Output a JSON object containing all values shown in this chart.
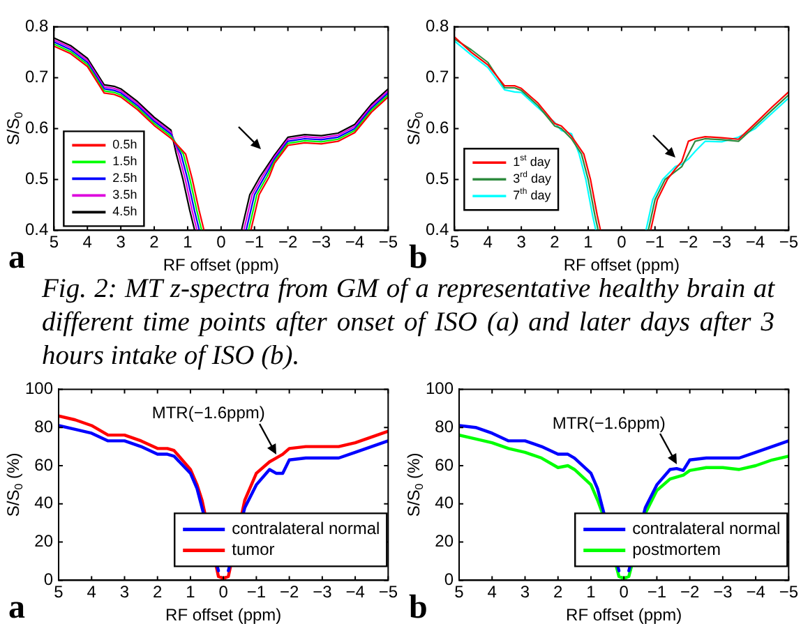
{
  "chart_data": [
    {
      "type": "line",
      "xlabel": "RF offset (ppm)",
      "ylabel": "S/S$_{0}$",
      "xlim": [
        5,
        -5
      ],
      "xticks": [
        5,
        4,
        3,
        2,
        1,
        0,
        -1,
        -2,
        -3,
        -4,
        -5
      ],
      "ylim": [
        0.4,
        0.8
      ],
      "yticks": [
        0.4,
        0.5,
        0.6,
        0.7,
        0.8
      ],
      "legend": "bottom left",
      "grid": false,
      "marker": "none",
      "line_style": "solid",
      "annotations": [
        "a"
      ],
      "series": [
        {
          "name": "0.5h",
          "color": "#ff0000",
          "x": [
            5,
            4.5,
            4,
            3.5,
            3.2,
            3,
            2.5,
            2,
            1.8,
            1.5,
            1.06,
            0.86,
            0.66,
            0.51,
            0,
            -0.89,
            -1.14,
            -1.44,
            -1.6,
            -2,
            -2.5,
            -3,
            -3.5,
            -4,
            -4.5,
            -5
          ],
          "values": [
            0.762,
            0.747,
            0.722,
            0.67,
            0.667,
            0.662,
            0.637,
            0.606,
            0.596,
            0.581,
            0.55,
            0.5,
            0.44,
            0.4,
            null,
            0.4,
            0.47,
            0.505,
            0.532,
            0.567,
            0.572,
            0.57,
            0.575,
            0.592,
            0.632,
            0.662
          ]
        },
        {
          "name": "1.5h",
          "color": "#00ff00",
          "x": [
            5,
            4.5,
            4,
            3.5,
            3.2,
            3,
            2.5,
            2,
            1.8,
            1.5,
            1.13,
            0.93,
            0.73,
            0.58,
            0,
            -0.82,
            -1.07,
            -1.37,
            -1.6,
            -2,
            -2.5,
            -3,
            -3.5,
            -4,
            -4.5,
            -5
          ],
          "values": [
            0.766,
            0.751,
            0.726,
            0.674,
            0.671,
            0.666,
            0.641,
            0.61,
            0.6,
            0.585,
            0.55,
            0.5,
            0.44,
            0.4,
            null,
            0.4,
            0.47,
            0.505,
            0.536,
            0.571,
            0.576,
            0.574,
            0.579,
            0.596,
            0.636,
            0.666
          ]
        },
        {
          "name": "2.5h",
          "color": "#0000ff",
          "x": [
            5,
            4.5,
            4,
            3.5,
            3.2,
            3,
            2.5,
            2,
            1.8,
            1.5,
            1.2,
            1,
            0.8,
            0.65,
            0,
            -0.75,
            -1,
            -1.3,
            -1.6,
            -2,
            -2.5,
            -3,
            -3.5,
            -4,
            -4.5,
            -5
          ],
          "values": [
            0.77,
            0.755,
            0.73,
            0.678,
            0.675,
            0.67,
            0.645,
            0.614,
            0.604,
            0.589,
            0.55,
            0.5,
            0.44,
            0.4,
            null,
            0.4,
            0.47,
            0.505,
            0.54,
            0.575,
            0.58,
            0.578,
            0.583,
            0.6,
            0.64,
            0.67
          ]
        },
        {
          "name": "3.5h",
          "color": "#dd00dd",
          "x": [
            5,
            4.5,
            4,
            3.5,
            3.2,
            3,
            2.5,
            2,
            1.8,
            1.5,
            1.27,
            1.07,
            0.87,
            0.72,
            0,
            -0.68,
            -0.93,
            -1.23,
            -1.6,
            -2,
            -2.5,
            -3,
            -3.5,
            -4,
            -4.5,
            -5
          ],
          "values": [
            0.774,
            0.759,
            0.734,
            0.682,
            0.679,
            0.674,
            0.649,
            0.618,
            0.608,
            0.593,
            0.55,
            0.5,
            0.44,
            0.4,
            null,
            0.4,
            0.47,
            0.505,
            0.544,
            0.579,
            0.584,
            0.582,
            0.587,
            0.604,
            0.644,
            0.674
          ]
        },
        {
          "name": "4.5h",
          "color": "#000000",
          "x": [
            5,
            4.5,
            4,
            3.5,
            3.2,
            3,
            2.5,
            2,
            1.8,
            1.5,
            1.34,
            1.14,
            0.94,
            0.79,
            0,
            -0.61,
            -0.86,
            -1.16,
            -1.6,
            -2,
            -2.5,
            -3,
            -3.5,
            -4,
            -4.5,
            -5
          ],
          "values": [
            0.778,
            0.763,
            0.738,
            0.686,
            0.683,
            0.678,
            0.653,
            0.622,
            0.612,
            0.597,
            0.55,
            0.5,
            0.44,
            0.4,
            null,
            0.4,
            0.47,
            0.505,
            0.548,
            0.583,
            0.588,
            0.586,
            0.591,
            0.608,
            0.648,
            0.678
          ]
        }
      ]
    },
    {
      "type": "line",
      "xlabel": "RF offset (ppm)",
      "ylabel": "S/S$_{0}$",
      "xlim": [
        5,
        -5
      ],
      "xticks": [
        5,
        4,
        3,
        2,
        1,
        0,
        -1,
        -2,
        -3,
        -4,
        -5
      ],
      "ylim": [
        0.4,
        0.8
      ],
      "yticks": [
        0.4,
        0.5,
        0.6,
        0.7,
        0.8
      ],
      "legend": "left",
      "grid": false,
      "marker": "none",
      "line_style": "solid",
      "annotations": [
        "b",
        "Fig. 2: MT z-spectra from GM of a representative healthy brain at different time points after onset of ISO (a) and later days after 3 hours intake of ISO (b)."
      ],
      "series": [
        {
          "name": "1$^{st}$ day",
          "color": "#ff0000",
          "x": [
            5,
            4.5,
            4,
            3.5,
            3.2,
            3,
            2.5,
            2,
            1.8,
            1.5,
            1.13,
            0.93,
            0.73,
            0.63,
            0,
            -0.87,
            -1.07,
            -1.37,
            -1.6,
            -1.8,
            -2,
            -2.2,
            -2.5,
            -3,
            -3.5,
            -4,
            -4.5,
            -5
          ],
          "values": [
            0.78,
            0.75,
            0.725,
            0.684,
            0.684,
            0.679,
            0.65,
            0.61,
            0.605,
            0.585,
            0.55,
            0.5,
            0.43,
            0.4,
            null,
            0.4,
            0.46,
            0.5,
            0.52,
            0.535,
            0.575,
            0.58,
            0.584,
            0.582,
            0.579,
            0.61,
            0.642,
            0.672
          ]
        },
        {
          "name": "3$^{rd}$ day",
          "color": "#2e8b3e",
          "x": [
            5,
            4.5,
            4,
            3.5,
            3.2,
            3,
            2.5,
            2,
            1.8,
            1.5,
            1.2,
            1,
            0.8,
            0.7,
            0,
            -0.8,
            -1,
            -1.3,
            -1.6,
            -1.8,
            -2,
            -2.2,
            -2.5,
            -3,
            -3.5,
            -4,
            -4.5,
            -5
          ],
          "values": [
            0.776,
            0.755,
            0.73,
            0.68,
            0.68,
            0.675,
            0.645,
            0.605,
            0.6,
            0.58,
            0.55,
            0.5,
            0.43,
            0.4,
            null,
            0.4,
            0.46,
            0.5,
            0.515,
            0.525,
            0.55,
            0.575,
            0.58,
            0.578,
            0.575,
            0.605,
            0.636,
            0.666
          ]
        },
        {
          "name": "7$^{th}$ day",
          "color": "#00ffff",
          "x": [
            5,
            4.5,
            4,
            3.5,
            3.2,
            3,
            2.5,
            2,
            1.8,
            1.5,
            1.27,
            1.07,
            0.87,
            0.77,
            0,
            -0.73,
            -0.93,
            -1.23,
            -1.6,
            -1.8,
            -2,
            -2.2,
            -2.5,
            -3,
            -3.5,
            -4,
            -4.5,
            -5
          ],
          "values": [
            0.772,
            0.745,
            0.72,
            0.676,
            0.672,
            0.671,
            0.641,
            0.612,
            0.596,
            0.59,
            0.55,
            0.5,
            0.43,
            0.4,
            null,
            0.4,
            0.46,
            0.5,
            0.525,
            0.53,
            0.54,
            0.555,
            0.575,
            0.574,
            0.583,
            0.6,
            0.63,
            0.66
          ]
        }
      ]
    },
    {
      "type": "line",
      "xlabel": "RF offset (ppm)",
      "ylabel": "S/S$_{0}$ (%)",
      "xlim": [
        5,
        -5
      ],
      "xticks": [
        5,
        4,
        3,
        2,
        1,
        0,
        -1,
        -2,
        -3,
        -4,
        -5
      ],
      "ylim": [
        0,
        100
      ],
      "yticks": [
        0,
        20,
        40,
        60,
        80,
        100
      ],
      "legend": "bottom right",
      "grid": false,
      "marker": "none",
      "line_style": "solid",
      "annotations": [
        "a",
        {
          "text": "MTR(−1.6ppm)",
          "x": -1.6,
          "y": 64
        }
      ],
      "x": [
        5,
        4.5,
        4,
        3.5,
        3,
        2.5,
        2,
        1.7,
        1.5,
        1,
        0.8,
        0.65,
        0.15,
        0,
        -0.15,
        -0.65,
        -1,
        -1.4,
        -1.6,
        -1.8,
        -2,
        -2.5,
        -3,
        -3.5,
        -4,
        -4.5,
        -5
      ],
      "series": [
        {
          "name": "contralateral normal",
          "color": "#0000ff",
          "values": [
            81,
            79,
            77,
            73,
            73,
            70,
            66,
            66,
            65,
            56,
            48,
            38,
            5,
            null,
            5,
            38,
            50,
            58,
            56,
            56,
            63,
            64,
            64,
            64,
            67,
            70,
            73
          ]
        },
        {
          "name": "tumor",
          "color": "#ff0000",
          "values": [
            86,
            84,
            81,
            76,
            76,
            73,
            69,
            69,
            68,
            58,
            50,
            42,
            2,
            1,
            2,
            42,
            56,
            62,
            64,
            66,
            69,
            70,
            70,
            70,
            72,
            75,
            78
          ]
        }
      ]
    },
    {
      "type": "line",
      "xlabel": "RF offset (ppm)",
      "ylabel": "S/S$_{0}$ (%)",
      "xlim": [
        5,
        -5
      ],
      "xticks": [
        5,
        4,
        3,
        2,
        1,
        0,
        -1,
        -2,
        -3,
        -4,
        -5
      ],
      "ylim": [
        0,
        100
      ],
      "yticks": [
        0,
        20,
        40,
        60,
        80,
        100
      ],
      "legend": "bottom right",
      "grid": false,
      "marker": "none",
      "line_style": "solid",
      "annotations": [
        "b",
        {
          "text": "MTR(−1.6ppm)",
          "x": -1.6,
          "y": 58.5
        }
      ],
      "x": [
        5,
        4.5,
        4,
        3.5,
        3,
        2.5,
        2,
        1.7,
        1.5,
        1,
        0.8,
        0.65,
        0.15,
        0,
        -0.15,
        -0.65,
        -1,
        -1.4,
        -1.6,
        -1.8,
        -2,
        -2.5,
        -3,
        -3.5,
        -4,
        -4.5,
        -5
      ],
      "series": [
        {
          "name": "contralateral normal",
          "color": "#0000ff",
          "values": [
            81,
            80,
            77,
            73,
            73,
            70,
            66,
            66,
            64,
            56,
            48,
            38,
            5,
            null,
            5,
            38,
            50,
            58,
            58.5,
            57.5,
            63,
            64,
            64,
            64,
            67,
            70,
            73
          ]
        },
        {
          "name": "postmortem",
          "color": "#00ff00",
          "values": [
            76,
            74,
            72,
            69,
            67,
            64,
            59,
            60,
            58,
            50,
            42,
            35,
            2,
            1,
            2,
            35,
            47,
            53,
            54,
            55,
            57.5,
            59,
            59,
            58,
            60,
            63,
            65
          ]
        }
      ]
    }
  ]
}
